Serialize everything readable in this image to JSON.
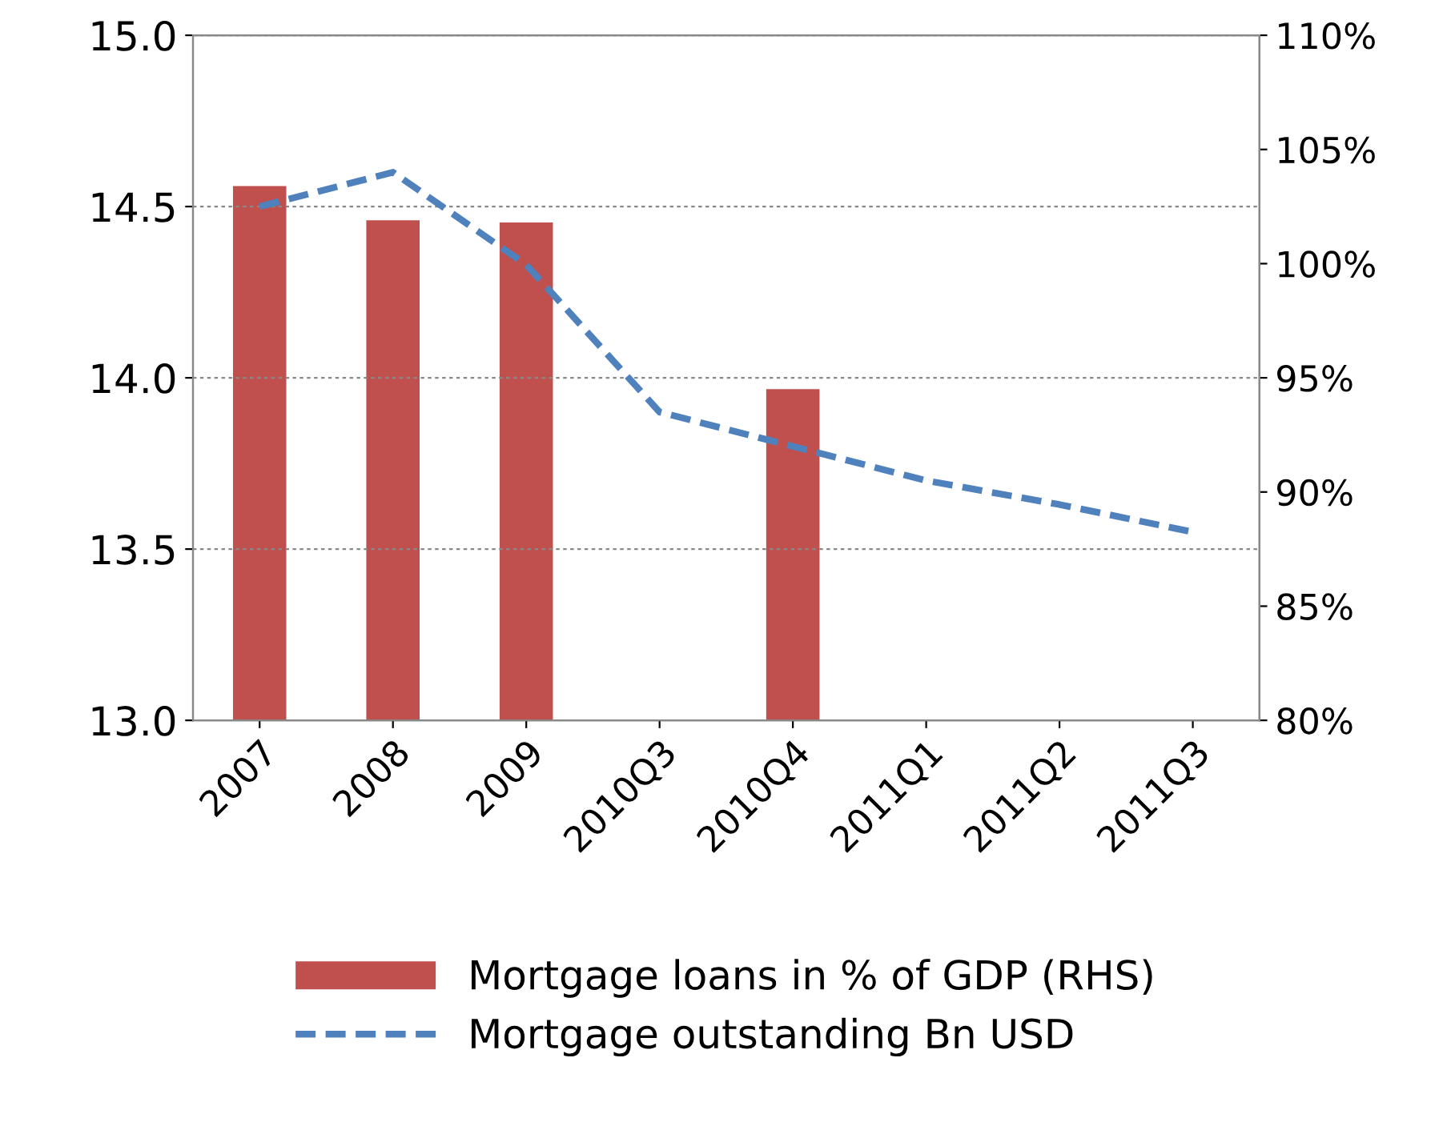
{
  "chart_data": {
    "type": "bar",
    "categories": [
      "2007",
      "2008",
      "2009",
      "2010Q3",
      "2010Q4",
      "2011Q1",
      "2011Q2",
      "2011Q3"
    ],
    "series": [
      {
        "name": "Mortgage loans in % of GDP (RHS)",
        "axis": "y2",
        "color": "#c0504d",
        "values": [
          103.4,
          101.9,
          101.8,
          null,
          94.5,
          null,
          null,
          null
        ]
      },
      {
        "name": "Mortgage outstanding Bn USD",
        "type": "line",
        "line_style": "dashed",
        "color": "#4f81bd",
        "values": [
          14.5,
          14.6,
          14.33,
          13.9,
          13.8,
          13.7,
          13.63,
          13.55
        ]
      }
    ],
    "ylim": [
      13,
      15
    ],
    "yticks": [
      {
        "value": 13,
        "label": "13.0"
      },
      {
        "value": 13.5,
        "label": "13.5"
      },
      {
        "value": 14,
        "label": "14.0"
      },
      {
        "value": 14.5,
        "label": "14.5"
      },
      {
        "value": 15,
        "label": "15.0"
      }
    ],
    "y2lim": [
      80,
      110
    ],
    "y2ticks": [
      {
        "value": 80,
        "label": "80%"
      },
      {
        "value": 85,
        "label": "85%"
      },
      {
        "value": 90,
        "label": "90%"
      },
      {
        "value": 95,
        "label": "95%"
      },
      {
        "value": 100,
        "label": "100%"
      },
      {
        "value": 105,
        "label": "105%"
      },
      {
        "value": 110,
        "label": "110%"
      }
    ],
    "grid": "y",
    "legend": "bottom"
  }
}
